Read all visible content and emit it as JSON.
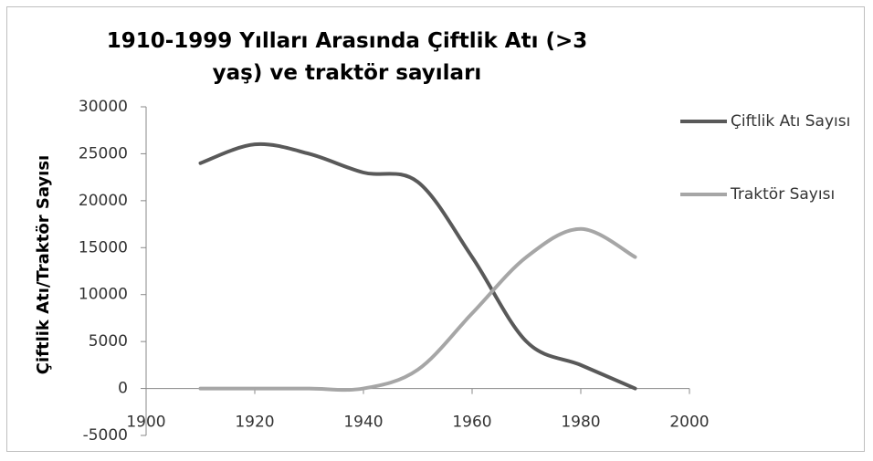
{
  "chart_data": {
    "type": "line",
    "title": "1910-1999 Yılları Arasında  Çiftlik Atı (>3 yaş) ve traktör sayıları",
    "y_label": "Çiftlik Atı/Traktör Sayısı",
    "x": [
      1910,
      1920,
      1930,
      1940,
      1950,
      1960,
      1970,
      1980,
      1990
    ],
    "series": [
      {
        "name": "Çiftlik Atı Sayısı",
        "color": "#595959",
        "values": [
          24000,
          26000,
          25000,
          23000,
          22000,
          14000,
          5000,
          2500,
          0
        ]
      },
      {
        "name": "Traktör Sayısı",
        "color": "#a6a6a6",
        "values": [
          0,
          0,
          0,
          0,
          2000,
          8000,
          14000,
          17000,
          14000
        ]
      }
    ],
    "xlim": [
      1900,
      2000
    ],
    "xticks": [
      1900,
      1920,
      1940,
      1960,
      1980,
      2000
    ],
    "ylim": [
      -5000,
      30000
    ],
    "yticks": [
      -5000,
      0,
      5000,
      10000,
      15000,
      20000,
      25000,
      30000
    ],
    "legend": "right",
    "grid": false
  }
}
